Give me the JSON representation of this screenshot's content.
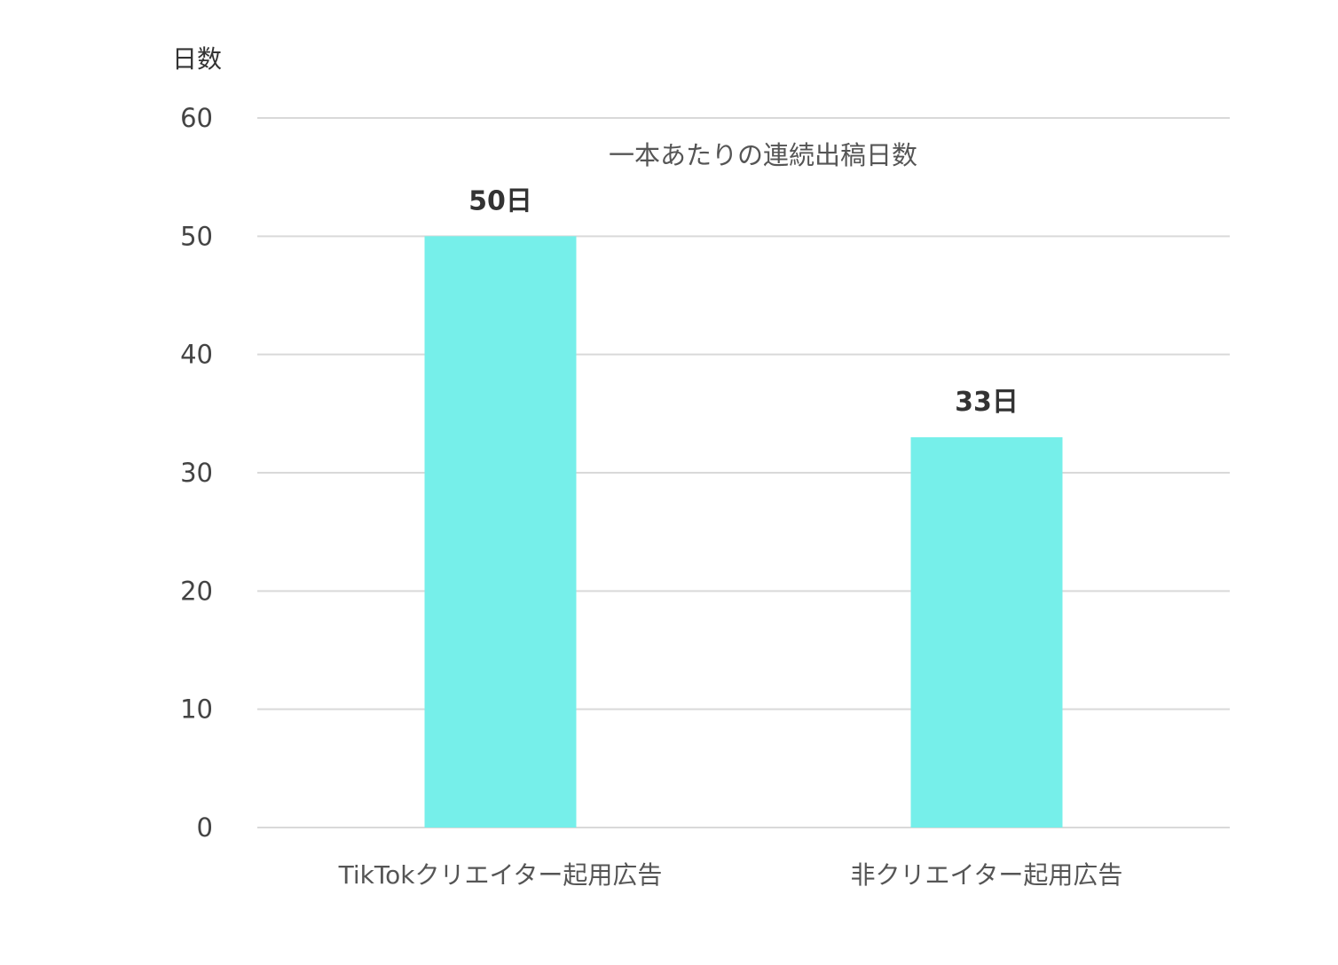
{
  "chart_data": {
    "type": "bar",
    "title": "一本あたりの連続出稿日数",
    "ylabel": "日数",
    "xlabel": "",
    "categories": [
      "TikTokクリエイター起用広告",
      "非クリエイター起用広告"
    ],
    "values": [
      50,
      33
    ],
    "data_labels": [
      "50日",
      "33日"
    ],
    "yticks": [
      0,
      10,
      20,
      30,
      40,
      50,
      60
    ],
    "ylim": [
      0,
      60
    ],
    "grid": true,
    "legend": "none",
    "bar_color": "#76efea"
  }
}
